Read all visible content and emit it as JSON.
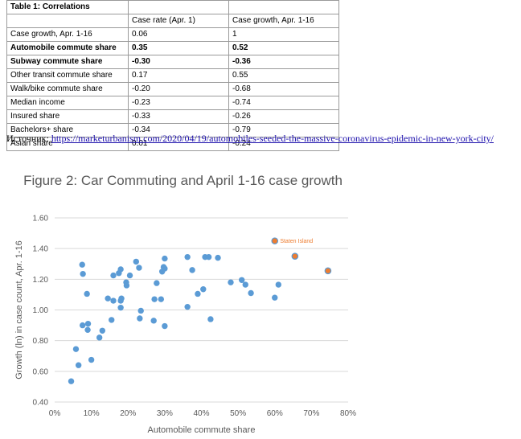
{
  "table": {
    "title": "Table 1: Correlations",
    "header": [
      "",
      "Case rate (Apr. 1)",
      "Case growth, Apr. 1-16"
    ],
    "rows": [
      {
        "label": "Case growth, Apr. 1-16",
        "rate": "0.06",
        "growth": "1",
        "bold": false
      },
      {
        "label": "Automobile commute share",
        "rate": "0.35",
        "growth": "0.52",
        "bold": true
      },
      {
        "label": "Subway commute share",
        "rate": "-0.30",
        "growth": "-0.36",
        "bold": true
      },
      {
        "label": "Other transit commute share",
        "rate": "0.17",
        "growth": "0.55",
        "bold": false
      },
      {
        "label": "Walk/bike commute share",
        "rate": "-0.20",
        "growth": "-0.68",
        "bold": false
      },
      {
        "label": "Median income",
        "rate": "-0.23",
        "growth": "-0.74",
        "bold": false
      },
      {
        "label": "Insured share",
        "rate": "-0.33",
        "growth": "-0.26",
        "bold": false
      },
      {
        "label": "Bachelors+ share",
        "rate": "-0.34",
        "growth": "-0.79",
        "bold": false
      },
      {
        "label": "Asian share",
        "rate": "0.01",
        "growth": "-0.24",
        "bold": false
      }
    ]
  },
  "source": {
    "prefix": "Источник:",
    "link_text": "https://marketurbanism.com/2020/04/19/automobiles-seeded-the-massive-coronavirus-epidemic-in-new-york-city/"
  },
  "chart_data": {
    "type": "scatter",
    "title": "Figure 2: Car Commuting and April 1-16 case growth",
    "xlabel": "Automobile commute share",
    "ylabel": "Growth (ln) in case count, Apr. 1-16",
    "xlim": [
      0,
      0.8
    ],
    "ylim": [
      0.4,
      1.6
    ],
    "xticks": [
      "0%",
      "10%",
      "20%",
      "30%",
      "40%",
      "50%",
      "60%",
      "70%",
      "80%"
    ],
    "yticks": [
      "0.40",
      "0.60",
      "0.80",
      "1.00",
      "1.20",
      "1.40",
      "1.60"
    ],
    "grid": "horizontal",
    "point_color": "#5b9bd5",
    "highlight_color": "#ed7d31",
    "annotation": {
      "text": "Staten Island",
      "x": 0.61,
      "y": 1.45
    },
    "points": [
      {
        "x": 0.045,
        "y": 0.535
      },
      {
        "x": 0.058,
        "y": 0.745
      },
      {
        "x": 0.065,
        "y": 0.64
      },
      {
        "x": 0.075,
        "y": 1.295
      },
      {
        "x": 0.077,
        "y": 1.235
      },
      {
        "x": 0.076,
        "y": 0.9
      },
      {
        "x": 0.088,
        "y": 1.105
      },
      {
        "x": 0.09,
        "y": 0.87
      },
      {
        "x": 0.091,
        "y": 0.91
      },
      {
        "x": 0.1,
        "y": 0.675
      },
      {
        "x": 0.122,
        "y": 0.82
      },
      {
        "x": 0.13,
        "y": 0.865
      },
      {
        "x": 0.145,
        "y": 1.075
      },
      {
        "x": 0.155,
        "y": 0.935
      },
      {
        "x": 0.16,
        "y": 1.225
      },
      {
        "x": 0.16,
        "y": 1.06
      },
      {
        "x": 0.175,
        "y": 1.24
      },
      {
        "x": 0.18,
        "y": 1.265
      },
      {
        "x": 0.18,
        "y": 1.06
      },
      {
        "x": 0.182,
        "y": 1.075
      },
      {
        "x": 0.18,
        "y": 1.015
      },
      {
        "x": 0.195,
        "y": 1.18
      },
      {
        "x": 0.196,
        "y": 1.16
      },
      {
        "x": 0.205,
        "y": 1.225
      },
      {
        "x": 0.222,
        "y": 1.315
      },
      {
        "x": 0.23,
        "y": 1.275
      },
      {
        "x": 0.232,
        "y": 0.945
      },
      {
        "x": 0.235,
        "y": 0.995
      },
      {
        "x": 0.27,
        "y": 0.93
      },
      {
        "x": 0.272,
        "y": 1.07
      },
      {
        "x": 0.278,
        "y": 1.175
      },
      {
        "x": 0.29,
        "y": 1.07
      },
      {
        "x": 0.293,
        "y": 1.25
      },
      {
        "x": 0.297,
        "y": 1.28
      },
      {
        "x": 0.3,
        "y": 1.335
      },
      {
        "x": 0.3,
        "y": 1.27
      },
      {
        "x": 0.3,
        "y": 0.895
      },
      {
        "x": 0.362,
        "y": 1.345
      },
      {
        "x": 0.362,
        "y": 1.02
      },
      {
        "x": 0.375,
        "y": 1.26
      },
      {
        "x": 0.39,
        "y": 1.105
      },
      {
        "x": 0.405,
        "y": 1.135
      },
      {
        "x": 0.41,
        "y": 1.345
      },
      {
        "x": 0.42,
        "y": 1.345
      },
      {
        "x": 0.425,
        "y": 0.94
      },
      {
        "x": 0.445,
        "y": 1.34
      },
      {
        "x": 0.48,
        "y": 1.18
      },
      {
        "x": 0.51,
        "y": 1.195
      },
      {
        "x": 0.52,
        "y": 1.165
      },
      {
        "x": 0.535,
        "y": 1.11
      },
      {
        "x": 0.6,
        "y": 1.08
      },
      {
        "x": 0.61,
        "y": 1.165
      },
      {
        "x": 0.6,
        "y": 1.45,
        "highlight": true
      },
      {
        "x": 0.655,
        "y": 1.35,
        "highlight": true
      },
      {
        "x": 0.745,
        "y": 1.255,
        "highlight": true
      }
    ]
  }
}
